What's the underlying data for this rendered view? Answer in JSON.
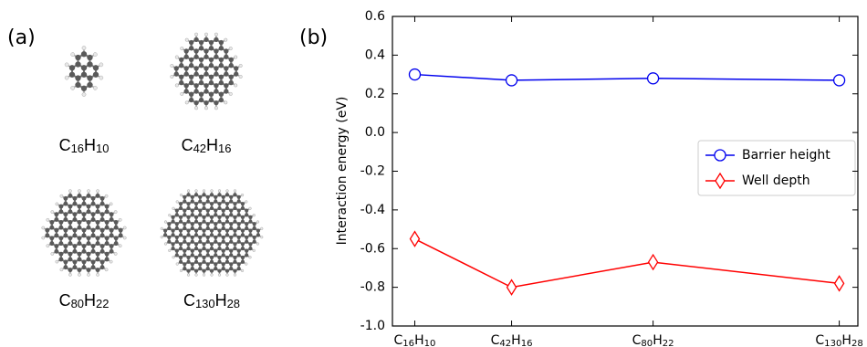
{
  "panel_labels": [
    "(a)",
    "(b)"
  ],
  "molecules": [
    "C16H10",
    "C42H16",
    "C80H22",
    "C130H28"
  ],
  "chart_data": {
    "type": "line",
    "y_label": "Interaction energy (eV)",
    "x": [
      16,
      42,
      80,
      130
    ],
    "xlim": [
      10,
      135
    ],
    "xticks": [
      {
        "value": 16,
        "label": "C16H10"
      },
      {
        "value": 42,
        "label": "C42H16"
      },
      {
        "value": 80,
        "label": "C80H22"
      },
      {
        "value": 130,
        "label": "C130H28"
      }
    ],
    "ylim": [
      -1.0,
      0.6
    ],
    "yticks": [
      0.6,
      0.4,
      0.2,
      {
        "value": 0,
        "label": "0.0"
      },
      -0.2,
      -0.4,
      -0.6,
      -0.8,
      {
        "value": -1.0,
        "label": "-1.0"
      }
    ],
    "legend": "right",
    "series": [
      {
        "name": "Barrier height",
        "color": "#0000ee",
        "marker": "circle",
        "values": [
          0.3,
          0.27,
          0.28,
          0.27
        ]
      },
      {
        "name": "Well depth",
        "color": "#ff0000",
        "marker": "diamond",
        "values": [
          -0.55,
          -0.8,
          -0.67,
          -0.78
        ]
      }
    ]
  }
}
